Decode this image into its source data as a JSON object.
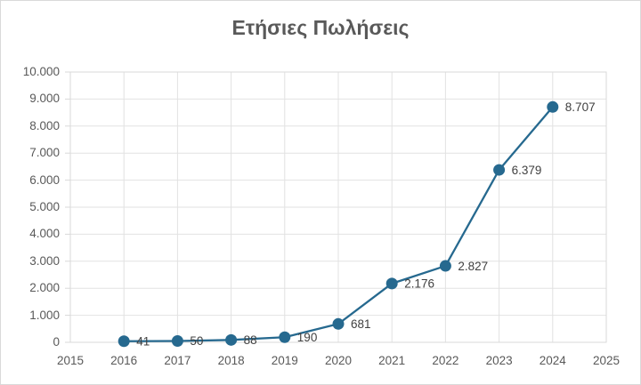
{
  "chart_title": "Ετήσιες Πωλήσεις",
  "chart_data": {
    "type": "line",
    "title": "Ετήσιες Πωλήσεις",
    "categories": [
      2016,
      2017,
      2018,
      2019,
      2020,
      2021,
      2022,
      2023,
      2024
    ],
    "values": [
      41,
      50,
      88,
      190,
      681,
      2176,
      2827,
      6379,
      8707
    ],
    "point_labels": [
      "41",
      "50",
      "88",
      "190",
      "681",
      "2.176",
      "2.827",
      "6.379",
      "8.707"
    ],
    "xlabel": "",
    "ylabel": "",
    "x_axis": {
      "min": 2015,
      "max": 2025,
      "step": 1,
      "tick_labels": [
        "2015",
        "2016",
        "2017",
        "2018",
        "2019",
        "2020",
        "2021",
        "2022",
        "2023",
        "2024",
        "2025"
      ]
    },
    "y_axis": {
      "min": 0,
      "max": 10000,
      "step": 1000,
      "tick_labels": [
        "0",
        "1.000",
        "2.000",
        "3.000",
        "4.000",
        "5.000",
        "6.000",
        "7.000",
        "8.000",
        "9.000",
        "10.000"
      ]
    },
    "grid": true,
    "legend": "none",
    "marker": "circle",
    "colors": {
      "series": "#26698F",
      "gridline": "#e2e2e2",
      "plot_border": "#d9d9d9",
      "chart_border": "#d9d9d9",
      "title_text": "#595959",
      "axis_text": "#595959",
      "data_label_text": "#404040",
      "background": "#ffffff"
    }
  }
}
